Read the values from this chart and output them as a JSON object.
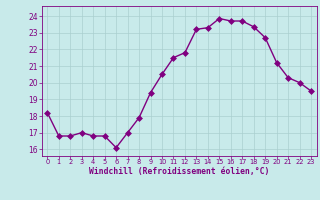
{
  "x": [
    0,
    1,
    2,
    3,
    4,
    5,
    6,
    7,
    8,
    9,
    10,
    11,
    12,
    13,
    14,
    15,
    16,
    17,
    18,
    19,
    20,
    21,
    22,
    23
  ],
  "y": [
    18.2,
    16.8,
    16.8,
    17.0,
    16.8,
    16.8,
    16.1,
    17.0,
    17.9,
    19.4,
    20.5,
    21.5,
    21.8,
    23.2,
    23.3,
    23.85,
    23.7,
    23.7,
    23.35,
    22.7,
    21.2,
    20.3,
    20.0,
    19.5
  ],
  "line_color": "#800080",
  "marker": "D",
  "bg_color": "#c8eaea",
  "grid_color": "#aacfcf",
  "xlabel": "Windchill (Refroidissement éolien,°C)",
  "xlabel_color": "#800080",
  "yticks": [
    16,
    17,
    18,
    19,
    20,
    21,
    22,
    23,
    24
  ],
  "xticks": [
    0,
    1,
    2,
    3,
    4,
    5,
    6,
    7,
    8,
    9,
    10,
    11,
    12,
    13,
    14,
    15,
    16,
    17,
    18,
    19,
    20,
    21,
    22,
    23
  ],
  "ylim": [
    15.6,
    24.6
  ],
  "xlim": [
    -0.5,
    23.5
  ],
  "tick_label_color": "#800080",
  "linewidth": 1.0,
  "markersize": 3,
  "title_color": "#800080"
}
